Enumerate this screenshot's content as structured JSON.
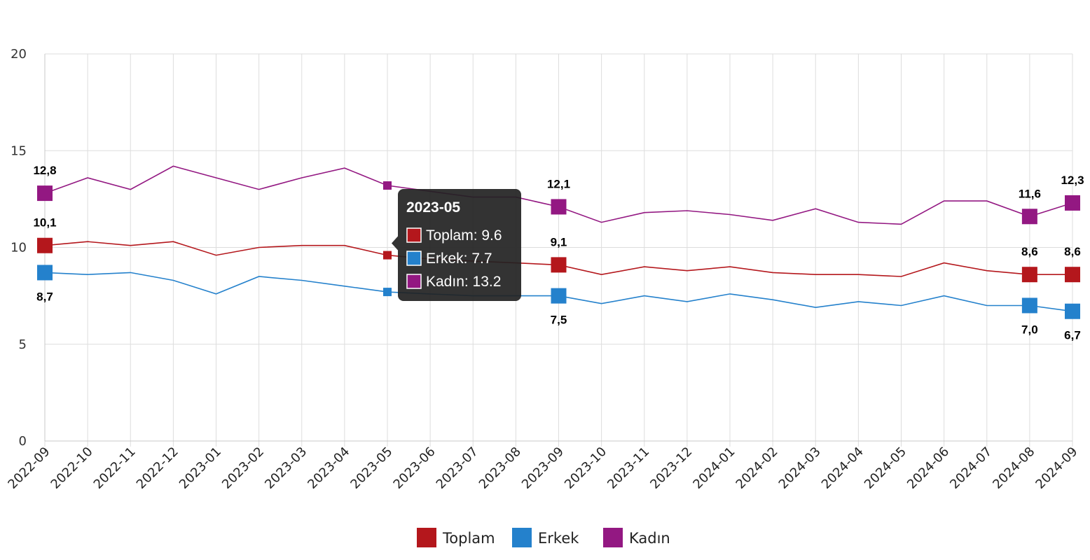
{
  "chart_data": {
    "type": "line",
    "title": "",
    "xlabel": "",
    "ylabel": "",
    "ylim": [
      0,
      20
    ],
    "yticks": [
      "0",
      "5",
      "10",
      "15",
      "20"
    ],
    "grid": true,
    "legend_position": "bottom",
    "categories": [
      "2022-09",
      "2022-10",
      "2022-11",
      "2022-12",
      "2023-01",
      "2023-02",
      "2023-03",
      "2023-04",
      "2023-05",
      "2023-06",
      "2023-07",
      "2023-08",
      "2023-09",
      "2023-10",
      "2023-11",
      "2023-12",
      "2024-01",
      "2024-02",
      "2024-03",
      "2024-04",
      "2024-05",
      "2024-06",
      "2024-07",
      "2024-08",
      "2024-09"
    ],
    "series": [
      {
        "name": "Toplam",
        "color": "#b4171c",
        "values": [
          10.1,
          10.3,
          10.1,
          10.3,
          9.6,
          10.0,
          10.1,
          10.1,
          9.6,
          9.4,
          9.3,
          9.2,
          9.1,
          8.6,
          9.0,
          8.8,
          9.0,
          8.7,
          8.6,
          8.6,
          8.5,
          9.2,
          8.8,
          8.6,
          8.6
        ]
      },
      {
        "name": "Erkek",
        "color": "#2481cc",
        "values": [
          8.7,
          8.6,
          8.7,
          8.3,
          7.6,
          8.5,
          8.3,
          8.0,
          7.7,
          7.6,
          7.5,
          7.5,
          7.5,
          7.1,
          7.5,
          7.2,
          7.6,
          7.3,
          6.9,
          7.2,
          7.0,
          7.5,
          7.0,
          7.0,
          6.7
        ]
      },
      {
        "name": "Kadın",
        "color": "#931882",
        "values": [
          12.8,
          13.6,
          13.0,
          14.2,
          13.6,
          13.0,
          13.6,
          14.1,
          13.2,
          12.9,
          12.6,
          12.6,
          12.1,
          11.3,
          11.8,
          11.9,
          11.7,
          11.4,
          12.0,
          11.3,
          11.2,
          12.4,
          12.4,
          11.6,
          12.3
        ]
      }
    ],
    "annotations": [
      {
        "series": "Toplam",
        "category": "2022-09",
        "label": "10,1",
        "position": "above"
      },
      {
        "series": "Erkek",
        "category": "2022-09",
        "label": "8,7",
        "position": "below"
      },
      {
        "series": "Kadın",
        "category": "2022-09",
        "label": "12,8",
        "position": "above"
      },
      {
        "series": "Toplam",
        "category": "2023-09",
        "label": "9,1",
        "position": "above"
      },
      {
        "series": "Erkek",
        "category": "2023-09",
        "label": "7,5",
        "position": "below"
      },
      {
        "series": "Kadın",
        "category": "2023-09",
        "label": "12,1",
        "position": "above"
      },
      {
        "series": "Toplam",
        "category": "2024-08",
        "label": "8,6",
        "position": "above"
      },
      {
        "series": "Erkek",
        "category": "2024-08",
        "label": "7,0",
        "position": "below"
      },
      {
        "series": "Kadın",
        "category": "2024-08",
        "label": "11,6",
        "position": "above"
      },
      {
        "series": "Toplam",
        "category": "2024-09",
        "label": "8,6",
        "position": "above"
      },
      {
        "series": "Erkek",
        "category": "2024-09",
        "label": "6,7",
        "position": "below"
      },
      {
        "series": "Kadın",
        "category": "2024-09",
        "label": "12,3",
        "position": "above"
      }
    ],
    "tooltip": {
      "category": "2023-05",
      "title": "2023-05",
      "rows": [
        "Toplam: 9.6",
        "Erkek: 7.7",
        "Kadın: 13.2"
      ]
    }
  }
}
